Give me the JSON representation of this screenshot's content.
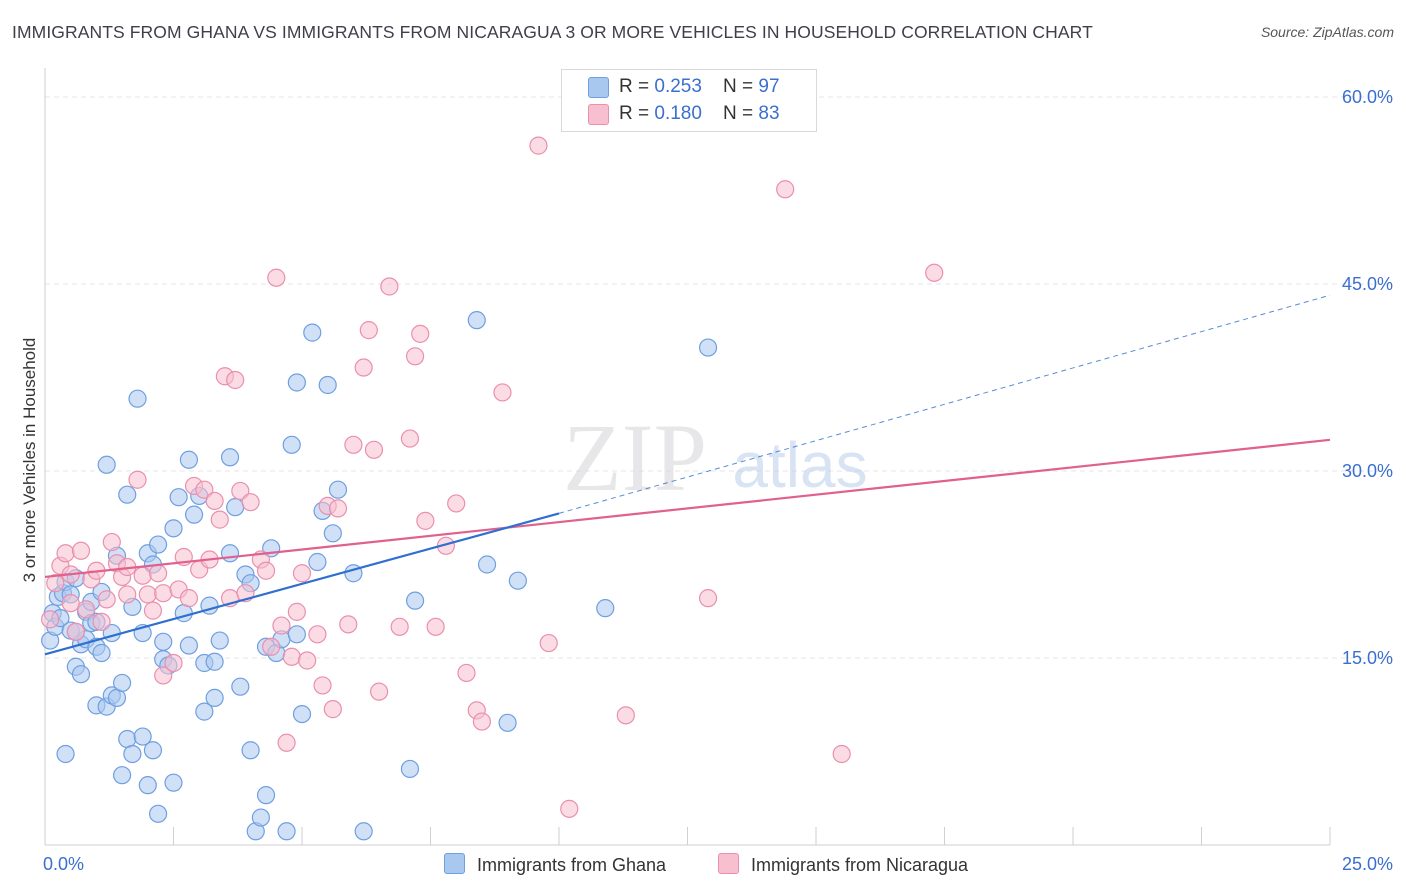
{
  "title": "IMMIGRANTS FROM GHANA VS IMMIGRANTS FROM NICARAGUA 3 OR MORE VEHICLES IN HOUSEHOLD CORRELATION CHART",
  "source": "Source: ZipAtlas.com",
  "watermark": {
    "zip": "ZIP",
    "atlas": "atlas"
  },
  "colors": {
    "ghana_fill": "#a9c8f0",
    "ghana_stroke": "#6f9fe0",
    "ghana_line": "#2f6fd0",
    "nicaragua_fill": "#f7bfd0",
    "nicaragua_stroke": "#ea8fae",
    "nicaragua_line": "#e0608e",
    "tick_label": "#3a6fd0"
  },
  "legend": {
    "ghana": {
      "r_label": "R = ",
      "r_value": "0.253",
      "n_label": "N = ",
      "n_value": "97"
    },
    "nicaragua": {
      "r_label": "R = ",
      "r_value": "0.180",
      "n_label": "N = ",
      "n_value": "83"
    }
  },
  "chart_data": {
    "type": "scatter",
    "title": "IMMIGRANTS FROM GHANA VS IMMIGRANTS FROM NICARAGUA 3 OR MORE VEHICLES IN HOUSEHOLD CORRELATION CHART",
    "xlabel": "",
    "ylabel": "3 or more Vehicles in Household",
    "xlim": [
      0,
      25
    ],
    "ylim": [
      0,
      60
    ],
    "x_tick_labels": [
      "0.0%",
      "25.0%"
    ],
    "y_ticks": [
      15,
      30,
      45,
      60
    ],
    "y_tick_labels": [
      "15.0%",
      "30.0%",
      "45.0%",
      "60.0%"
    ],
    "grid": true,
    "series": [
      {
        "name": "Immigrants from Ghana",
        "color": "#6f9fe0",
        "points": [
          [
            0.1,
            16.4
          ],
          [
            0.15,
            18.6
          ],
          [
            0.2,
            17.5
          ],
          [
            0.25,
            19.9
          ],
          [
            0.3,
            18.2
          ],
          [
            0.35,
            20.2
          ],
          [
            0.4,
            7.3
          ],
          [
            0.4,
            21.1
          ],
          [
            0.5,
            17.2
          ],
          [
            0.5,
            20.1
          ],
          [
            0.6,
            14.3
          ],
          [
            0.6,
            21.4
          ],
          [
            0.7,
            13.7
          ],
          [
            0.7,
            16.1
          ],
          [
            0.8,
            18.7
          ],
          [
            0.8,
            16.5
          ],
          [
            0.9,
            17.8
          ],
          [
            0.9,
            19.5
          ],
          [
            1.0,
            15.9
          ],
          [
            1.0,
            11.2
          ],
          [
            1.1,
            20.3
          ],
          [
            1.1,
            15.4
          ],
          [
            1.2,
            11.1
          ],
          [
            1.2,
            30.5
          ],
          [
            1.3,
            17.0
          ],
          [
            1.3,
            12.0
          ],
          [
            1.4,
            23.2
          ],
          [
            1.4,
            11.8
          ],
          [
            1.5,
            13.0
          ],
          [
            1.5,
            5.6
          ],
          [
            1.6,
            28.1
          ],
          [
            1.6,
            8.5
          ],
          [
            1.7,
            7.3
          ],
          [
            1.7,
            19.1
          ],
          [
            1.8,
            35.8
          ],
          [
            1.9,
            8.7
          ],
          [
            1.9,
            17.0
          ],
          [
            2.0,
            4.8
          ],
          [
            2.0,
            23.4
          ],
          [
            2.1,
            22.5
          ],
          [
            2.1,
            7.6
          ],
          [
            2.2,
            24.1
          ],
          [
            2.2,
            2.5
          ],
          [
            2.3,
            14.9
          ],
          [
            2.3,
            16.3
          ],
          [
            2.4,
            14.4
          ],
          [
            2.5,
            5.0
          ],
          [
            2.5,
            25.4
          ],
          [
            2.6,
            27.9
          ],
          [
            2.7,
            18.6
          ],
          [
            2.8,
            30.9
          ],
          [
            2.9,
            26.5
          ],
          [
            3.0,
            28.0
          ],
          [
            3.1,
            14.6
          ],
          [
            3.1,
            10.7
          ],
          [
            3.2,
            19.2
          ],
          [
            3.3,
            14.7
          ],
          [
            3.3,
            11.8
          ],
          [
            3.4,
            16.4
          ],
          [
            3.6,
            23.4
          ],
          [
            3.6,
            31.1
          ],
          [
            3.7,
            27.1
          ],
          [
            3.8,
            12.7
          ],
          [
            3.9,
            21.7
          ],
          [
            4.0,
            21.0
          ],
          [
            4.0,
            7.6
          ],
          [
            4.1,
            1.1
          ],
          [
            4.2,
            2.2
          ],
          [
            4.3,
            15.9
          ],
          [
            4.3,
            4.0
          ],
          [
            4.4,
            23.8
          ],
          [
            4.5,
            15.4
          ],
          [
            4.6,
            16.5
          ],
          [
            4.7,
            1.1
          ],
          [
            4.8,
            32.1
          ],
          [
            4.9,
            16.9
          ],
          [
            4.9,
            37.1
          ],
          [
            5.0,
            10.5
          ],
          [
            5.2,
            41.1
          ],
          [
            5.3,
            22.7
          ],
          [
            5.4,
            26.8
          ],
          [
            5.5,
            36.9
          ],
          [
            5.6,
            25.0
          ],
          [
            5.7,
            28.5
          ],
          [
            6.0,
            21.8
          ],
          [
            6.2,
            1.1
          ],
          [
            7.1,
            6.1
          ],
          [
            7.2,
            19.6
          ],
          [
            8.4,
            42.1
          ],
          [
            8.6,
            22.5
          ],
          [
            9.0,
            9.8
          ],
          [
            9.2,
            21.2
          ],
          [
            10.9,
            19.0
          ],
          [
            12.9,
            39.9
          ],
          [
            1.0,
            17.9
          ],
          [
            2.8,
            16.0
          ],
          [
            0.6,
            17.1
          ]
        ]
      },
      {
        "name": "Immigrants from Nicaragua",
        "color": "#ea8fae",
        "points": [
          [
            0.1,
            18.1
          ],
          [
            0.2,
            21.0
          ],
          [
            0.3,
            22.4
          ],
          [
            0.4,
            23.4
          ],
          [
            0.5,
            19.4
          ],
          [
            0.5,
            21.7
          ],
          [
            0.6,
            17.1
          ],
          [
            0.7,
            23.6
          ],
          [
            0.8,
            18.9
          ],
          [
            0.9,
            21.3
          ],
          [
            1.0,
            22.0
          ],
          [
            1.1,
            17.9
          ],
          [
            1.2,
            19.7
          ],
          [
            1.3,
            24.3
          ],
          [
            1.4,
            22.6
          ],
          [
            1.5,
            21.5
          ],
          [
            1.6,
            20.1
          ],
          [
            1.6,
            22.3
          ],
          [
            1.8,
            29.3
          ],
          [
            1.9,
            21.6
          ],
          [
            2.0,
            20.1
          ],
          [
            2.1,
            18.8
          ],
          [
            2.2,
            21.8
          ],
          [
            2.3,
            13.6
          ],
          [
            2.3,
            20.2
          ],
          [
            2.5,
            14.6
          ],
          [
            2.6,
            20.5
          ],
          [
            2.7,
            23.1
          ],
          [
            2.8,
            19.8
          ],
          [
            2.9,
            28.8
          ],
          [
            3.0,
            22.1
          ],
          [
            3.1,
            28.5
          ],
          [
            3.2,
            22.9
          ],
          [
            3.3,
            27.6
          ],
          [
            3.4,
            26.1
          ],
          [
            3.5,
            37.6
          ],
          [
            3.6,
            19.8
          ],
          [
            3.7,
            37.3
          ],
          [
            3.8,
            28.4
          ],
          [
            3.9,
            20.2
          ],
          [
            4.0,
            27.5
          ],
          [
            4.2,
            22.9
          ],
          [
            4.3,
            22.0
          ],
          [
            4.4,
            15.9
          ],
          [
            4.5,
            45.5
          ],
          [
            4.6,
            17.6
          ],
          [
            4.7,
            8.2
          ],
          [
            4.8,
            15.1
          ],
          [
            4.9,
            18.7
          ],
          [
            5.0,
            21.8
          ],
          [
            5.1,
            14.8
          ],
          [
            5.3,
            16.9
          ],
          [
            5.4,
            12.8
          ],
          [
            5.5,
            27.2
          ],
          [
            5.6,
            10.9
          ],
          [
            5.7,
            27.0
          ],
          [
            5.9,
            17.7
          ],
          [
            6.0,
            32.1
          ],
          [
            6.2,
            38.3
          ],
          [
            6.3,
            41.3
          ],
          [
            6.4,
            31.7
          ],
          [
            6.5,
            12.3
          ],
          [
            6.7,
            44.8
          ],
          [
            6.9,
            17.5
          ],
          [
            7.1,
            32.6
          ],
          [
            7.2,
            39.2
          ],
          [
            7.3,
            41.0
          ],
          [
            7.4,
            26.0
          ],
          [
            7.6,
            17.5
          ],
          [
            7.8,
            24.0
          ],
          [
            8.0,
            27.4
          ],
          [
            8.2,
            13.8
          ],
          [
            8.4,
            10.8
          ],
          [
            8.5,
            9.9
          ],
          [
            8.9,
            36.3
          ],
          [
            9.6,
            56.1
          ],
          [
            9.8,
            16.2
          ],
          [
            10.2,
            2.9
          ],
          [
            11.3,
            10.4
          ],
          [
            12.9,
            19.8
          ],
          [
            14.4,
            52.6
          ],
          [
            15.5,
            7.3
          ],
          [
            17.3,
            45.9
          ]
        ]
      }
    ],
    "trend_lines": [
      {
        "series": "Immigrants from Ghana",
        "solid_from": [
          0,
          15.3
        ],
        "solid_to": [
          10.0,
          26.6
        ],
        "dashed_to": [
          25.0,
          44.1
        ]
      },
      {
        "series": "Immigrants from Nicaragua",
        "from": [
          0,
          21.5
        ],
        "to": [
          25.0,
          32.5
        ]
      }
    ]
  },
  "bottom_legend": {
    "ghana": "Immigrants from Ghana",
    "nicaragua": "Immigrants from Nicaragua"
  }
}
